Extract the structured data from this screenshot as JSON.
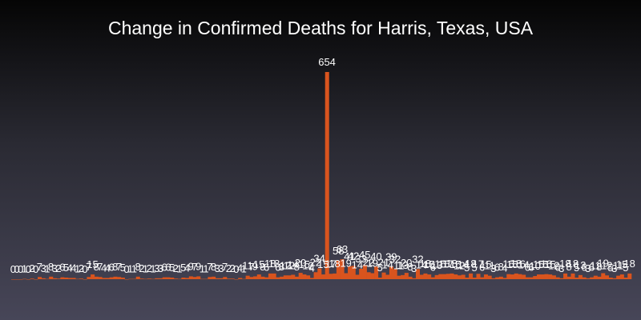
{
  "chart_data": {
    "type": "bar",
    "title": "Change in Confirmed Deaths for Harris, Texas, USA",
    "xlabel": "",
    "ylabel": "",
    "ylim": [
      -8,
      654
    ],
    "grid": false,
    "legend": "none",
    "bar_color": "#d9541e",
    "values": [
      0,
      0,
      0,
      1,
      0,
      2,
      0,
      7,
      3,
      1,
      8,
      3,
      2,
      6,
      5,
      4,
      4,
      1,
      2,
      0,
      7,
      15,
      8,
      7,
      4,
      4,
      6,
      8,
      7,
      5,
      0,
      1,
      1,
      8,
      2,
      1,
      2,
      1,
      3,
      3,
      6,
      6,
      5,
      2,
      1,
      5,
      4,
      9,
      7,
      9,
      1,
      1,
      7,
      8,
      3,
      3,
      7,
      2,
      2,
      0,
      4,
      1,
      11,
      7,
      9,
      15,
      8,
      6,
      18,
      18,
      6,
      8,
      12,
      12,
      14,
      8,
      20,
      15,
      12,
      4,
      22,
      34,
      15,
      654,
      17,
      18,
      58,
      63,
      19,
      41,
      42,
      14,
      33,
      45,
      22,
      19,
      40,
      5,
      21,
      14,
      39,
      32,
      11,
      13,
      20,
      8,
      3,
      32,
      14,
      18,
      15,
      6,
      13,
      16,
      16,
      17,
      18,
      15,
      12,
      14,
      5,
      18,
      5,
      17,
      6,
      15,
      11,
      3,
      6,
      8,
      4,
      16,
      15,
      18,
      16,
      14,
      6,
      6,
      10,
      15,
      15,
      16,
      15,
      12,
      6,
      3,
      18,
      8,
      18,
      5,
      13,
      6,
      3,
      6,
      11,
      8,
      19,
      12,
      5,
      3,
      11,
      15,
      5,
      18
    ]
  }
}
